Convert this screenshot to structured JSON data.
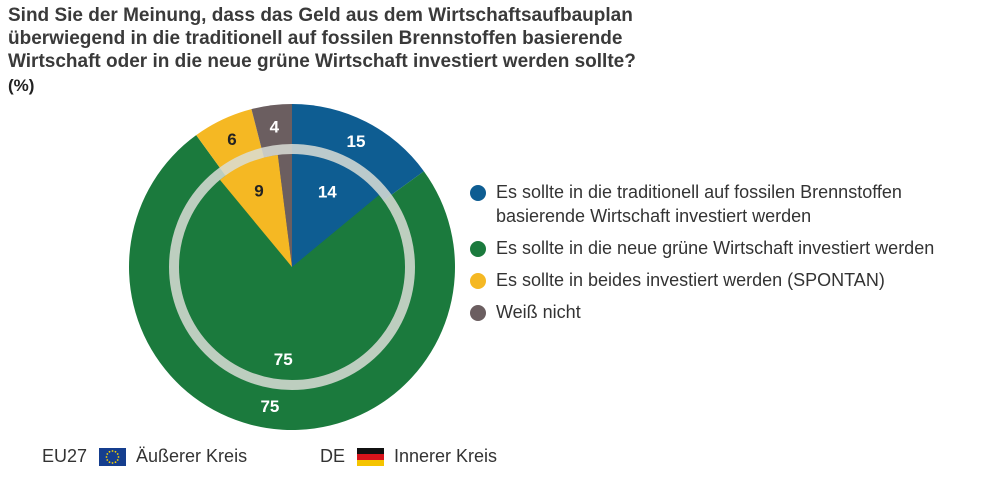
{
  "title_lines": [
    "Sind Sie der Meinung, dass das Geld aus dem Wirtschaftsaufbauplan",
    "überwiegend in die traditionell auf fossilen Brennstoffen basierende",
    "Wirtschaft oder in die neue grüne Wirtschaft investiert werden sollte?"
  ],
  "unit": "(%)",
  "legend": [
    {
      "label": "Es sollte in die traditionell auf fossilen Brennstoffen basierende Wirtschaft investiert werden",
      "color": "#0e5d92"
    },
    {
      "label": "Es sollte in die neue grüne Wirtschaft investiert werden",
      "color": "#1b7a3d"
    },
    {
      "label": "Es sollte in beides investiert werden (SPONTAN)",
      "color": "#f5b823"
    },
    {
      "label": "Weiß nicht",
      "color": "#6b5e60"
    }
  ],
  "footer": {
    "outer": {
      "code": "EU27",
      "label": "Äußerer Kreis",
      "flag": "eu-flag"
    },
    "inner": {
      "code": "DE",
      "label": "Innerer Kreis",
      "flag": "de-flag"
    }
  },
  "chart_data": {
    "type": "pie",
    "title": "Sind Sie der Meinung, dass das Geld aus dem Wirtschaftsaufbauplan überwiegend in die traditionell auf fossilen Brennstoffen basierende Wirtschaft oder in die neue grüne Wirtschaft investiert werden sollte?",
    "categories": [
      "Es sollte in die traditionell auf fossilen Brennstoffen basierende Wirtschaft investiert werden",
      "Es sollte in die neue grüne Wirtschaft investiert werden",
      "Es sollte in beides investiert werden (SPONTAN)",
      "Weiß nicht"
    ],
    "series": [
      {
        "name": "EU27 (Äußerer Kreis)",
        "ring": "outer",
        "values": [
          15,
          75,
          6,
          4
        ]
      },
      {
        "name": "DE (Innerer Kreis)",
        "ring": "inner",
        "values": [
          14,
          75,
          9,
          2
        ]
      }
    ],
    "colors": [
      "#0e5d92",
      "#1b7a3d",
      "#f5b823",
      "#6b5e60"
    ],
    "label_colors": [
      "#ffffff",
      "#ffffff",
      "#222222",
      "#ffffff"
    ],
    "inner_ring_color": "#d9ddd6",
    "unit": "%"
  }
}
